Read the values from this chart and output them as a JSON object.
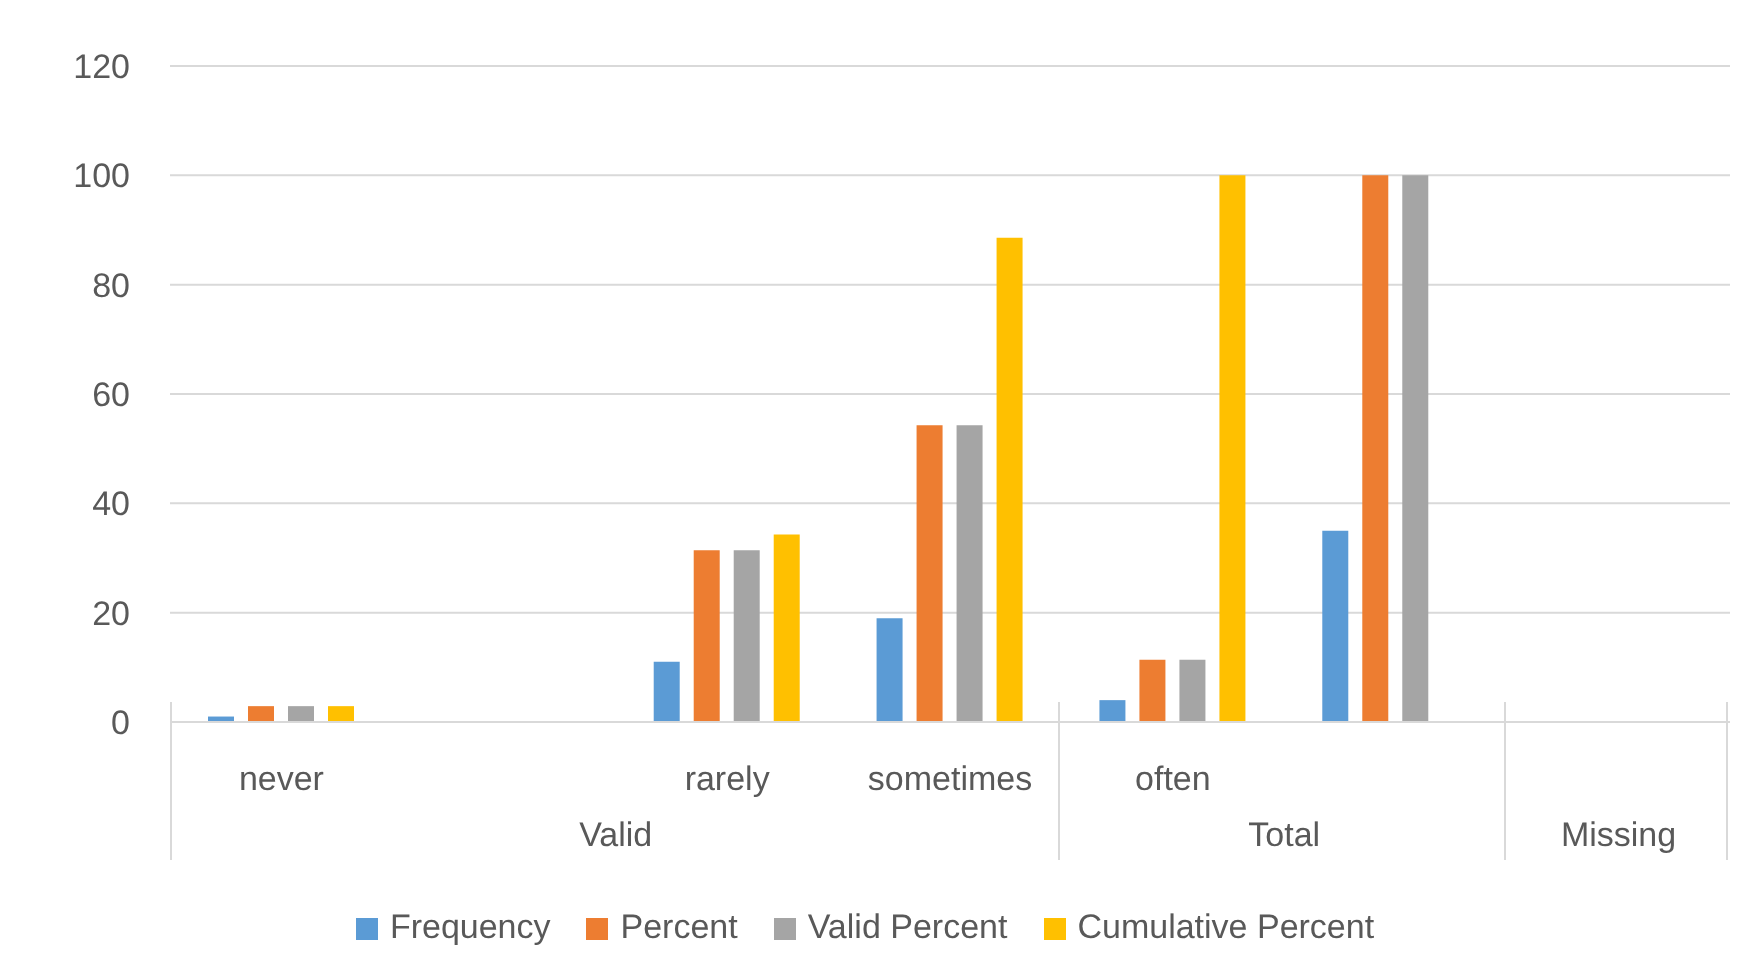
{
  "chart_data": {
    "type": "bar",
    "categories": [
      "never",
      null,
      "rarely",
      "sometimes",
      "often",
      null,
      null
    ],
    "series": [
      {
        "name": "Frequency",
        "color": "#5b9bd5",
        "values": [
          1,
          null,
          11,
          19,
          4,
          35,
          null
        ]
      },
      {
        "name": "Percent",
        "color": "#ed7d31",
        "values": [
          2.9,
          null,
          31.4,
          54.3,
          11.4,
          100,
          null
        ]
      },
      {
        "name": "Valid Percent",
        "color": "#a5a5a5",
        "values": [
          2.9,
          null,
          31.4,
          54.3,
          11.4,
          100,
          null
        ]
      },
      {
        "name": "Cumulative Percent",
        "color": "#ffc000",
        "values": [
          2.9,
          null,
          34.3,
          88.6,
          100,
          null,
          null
        ]
      }
    ],
    "annotations": [
      "Valid",
      "Total",
      "Missing"
    ],
    "ylim": [
      0,
      120
    ],
    "yticks": [
      0,
      20,
      40,
      60,
      80,
      100,
      120
    ],
    "grid": "y",
    "legend": "bottom"
  }
}
